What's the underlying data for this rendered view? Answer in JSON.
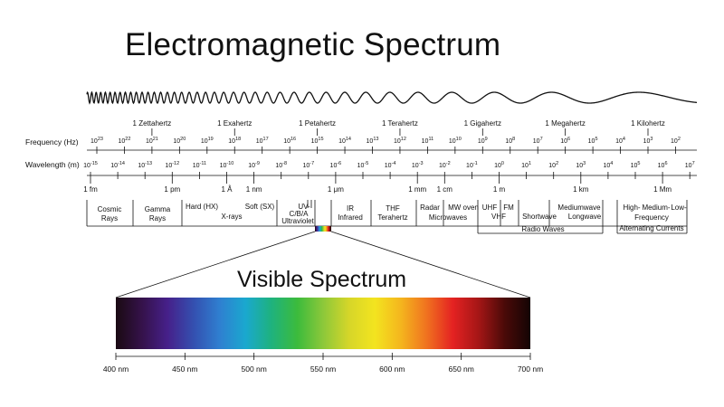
{
  "title": "Electromagnetic Spectrum",
  "visible_title": "Visible Spectrum",
  "frequency_label": "Frequency (Hz)",
  "wavelength_label": "Wavelength (m)",
  "frequency_names": [
    {
      "text": "1 Zettahertz",
      "exp": 21
    },
    {
      "text": "1 Exahertz",
      "exp": 18
    },
    {
      "text": "1 Petahertz",
      "exp": 15
    },
    {
      "text": "1 Terahertz",
      "exp": 12
    },
    {
      "text": "1 Gigahertz",
      "exp": 9
    },
    {
      "text": "1 Megahertz",
      "exp": 6
    },
    {
      "text": "1 Kilohertz",
      "exp": 3
    }
  ],
  "frequency_exponents": [
    23,
    22,
    21,
    20,
    19,
    18,
    17,
    16,
    15,
    14,
    13,
    12,
    11,
    10,
    9,
    8,
    7,
    6,
    5,
    4,
    3,
    2
  ],
  "wavelength_exponents": [
    -15,
    -14,
    -13,
    -12,
    -11,
    -10,
    -9,
    -8,
    -7,
    -6,
    -5,
    -4,
    -3,
    -2,
    -1,
    0,
    1,
    2,
    3,
    4,
    5,
    6,
    7
  ],
  "wavelength_names": [
    {
      "text": "1 fm",
      "exp": -15
    },
    {
      "text": "1 pm",
      "exp": -12
    },
    {
      "text": "1 Å",
      "exp": -10
    },
    {
      "text": "1 nm",
      "exp": -9
    },
    {
      "text": "1 μm",
      "exp": -6
    },
    {
      "text": "1 mm",
      "exp": -3
    },
    {
      "text": "1 cm",
      "exp": -2
    },
    {
      "text": "1 m",
      "exp": 0
    },
    {
      "text": "1 km",
      "exp": 3
    },
    {
      "text": "1 Mm",
      "exp": 6
    }
  ],
  "bands": {
    "cosmic": [
      "Cosmic",
      "Rays"
    ],
    "gamma": [
      "Gamma",
      "Rays"
    ],
    "hard_x": "Hard (HX)",
    "soft_x": "Soft (SX)",
    "xrays": "X-rays",
    "uv": [
      "UV-",
      "C/B/A"
    ],
    "ultraviolet": "Ultraviolet",
    "ir": [
      "IR",
      "Infrared"
    ],
    "thf": [
      "THF",
      "Terahertz"
    ],
    "radar": "Radar",
    "mw_oven": "MW oven",
    "microwaves": "Microwaves",
    "uhf": "UHF",
    "vhf": "VHF",
    "fm": "FM",
    "shortwave": "Shortwave",
    "mediumwave": "Mediumwave",
    "longwave": "Longwave",
    "radio_waves": "Radio Waves",
    "high": "High-",
    "medium": "Medium-",
    "low": "Low-",
    "frequency": "Frequency",
    "alternating": "Alternating Currents"
  },
  "visible_ticks": [
    "400 nm",
    "450 nm",
    "500 nm",
    "550 nm",
    "600 nm",
    "650 nm",
    "700 nm"
  ],
  "colors": {
    "ink": "#111111",
    "spectrum": [
      "#1a0a12",
      "#35124a",
      "#46208a",
      "#3450b0",
      "#2f7fd0",
      "#1aa8cf",
      "#1eb27e",
      "#3cbb3c",
      "#8cc83a",
      "#d6d629",
      "#f3e41f",
      "#f4b51e",
      "#f0721f",
      "#e42222",
      "#a51616",
      "#4a0a08",
      "#140404"
    ]
  }
}
